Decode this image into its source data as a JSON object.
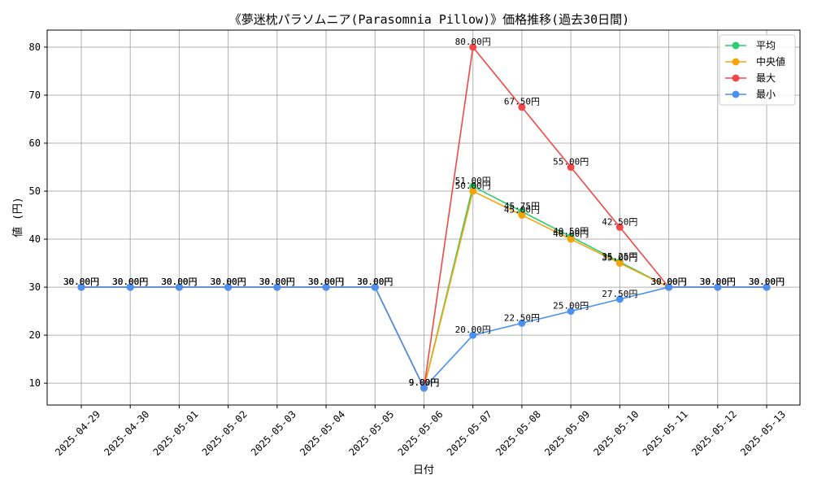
{
  "chart_data": {
    "type": "line",
    "title": "《夢迷枕パラソムニア(Parasomnia Pillow)》価格推移(過去30日間)",
    "xlabel": "日付",
    "ylabel": "値 (円)",
    "ylim": [
      5.45,
      83.55
    ],
    "yticks": [
      10,
      20,
      30,
      40,
      50,
      60,
      70,
      80
    ],
    "grid": true,
    "legend_position": "top-right",
    "value_suffix": "円",
    "categories": [
      "2025-04-29",
      "2025-04-30",
      "2025-05-01",
      "2025-05-02",
      "2025-05-03",
      "2025-05-04",
      "2025-05-05",
      "2025-05-06",
      "2025-05-07",
      "2025-05-08",
      "2025-05-09",
      "2025-05-10",
      "2025-05-11",
      "2025-05-12",
      "2025-05-13"
    ],
    "series": [
      {
        "name": "平均",
        "color": "#2ecc71",
        "values": [
          30,
          30,
          30,
          30,
          30,
          30,
          30,
          9,
          51,
          45.75,
          40.5,
          35.25,
          30,
          30,
          30
        ],
        "labels": [
          "30.00円",
          "30.00円",
          "30.00円",
          "30.00円",
          "30.00円",
          "30.00円",
          "30.00円",
          "9.00円",
          "51.00円",
          "45.75円",
          "40.50円",
          "35.25円",
          "30.00円",
          "30.00円",
          "30.00円"
        ]
      },
      {
        "name": "中央値",
        "color": "#f5a30a",
        "values": [
          30,
          30,
          30,
          30,
          30,
          30,
          30,
          9,
          50,
          45,
          40,
          35,
          30,
          30,
          30
        ],
        "labels": [
          "30.00円",
          "30.00円",
          "30.00円",
          "30.00円",
          "30.00円",
          "30.00円",
          "30.00円",
          "9.00円",
          "50.00円",
          "45.00円",
          "40.00円",
          "35.00円",
          "30.00円",
          "30.00円",
          "30.00円"
        ]
      },
      {
        "name": "最大",
        "color": "#f04848",
        "values": [
          30,
          30,
          30,
          30,
          30,
          30,
          30,
          9,
          80,
          67.5,
          55,
          42.5,
          30,
          30,
          30
        ],
        "labels": [
          "30.00円",
          "30.00円",
          "30.00円",
          "30.00円",
          "30.00円",
          "30.00円",
          "30.00円",
          "9.00円",
          "80.00円",
          "67.50円",
          "55.00円",
          "42.50円",
          "30.00円",
          "30.00円",
          "30.00円"
        ]
      },
      {
        "name": "最小",
        "color": "#4a90f0",
        "values": [
          30,
          30,
          30,
          30,
          30,
          30,
          30,
          9,
          20,
          22.5,
          25,
          27.5,
          30,
          30,
          30
        ],
        "labels": [
          "30.00円",
          "30.00円",
          "30.00円",
          "30.00円",
          "30.00円",
          "30.00円",
          "30.00円",
          "9.00円",
          "20.00円",
          "22.50円",
          "25.00円",
          "27.50円",
          "30.00円",
          "30.00円",
          "30.00円"
        ]
      }
    ]
  }
}
